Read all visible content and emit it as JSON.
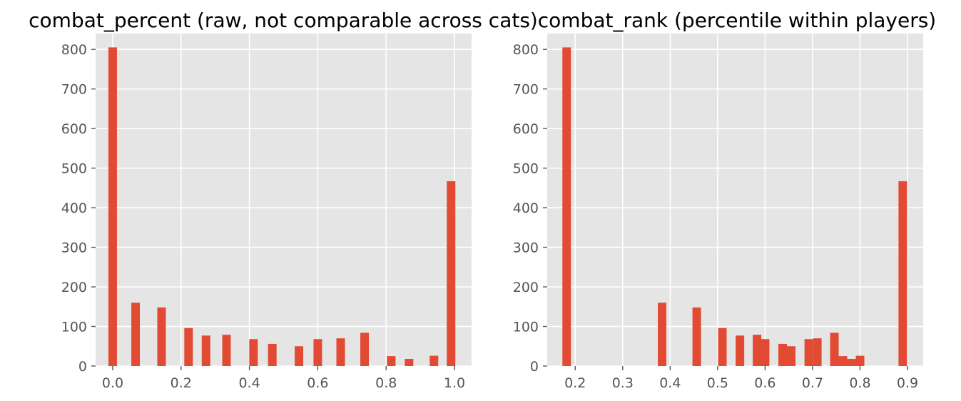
{
  "chart_data": [
    {
      "type": "bar",
      "title": "combat_percent (raw, not comparable across cats)",
      "xlabel": "",
      "ylabel": "",
      "xlim": [
        -0.05,
        1.05
      ],
      "ylim": [
        0,
        840
      ],
      "xticks": [
        0.0,
        0.2,
        0.4,
        0.6,
        0.8,
        1.0
      ],
      "xtick_labels": [
        "0.0",
        "0.2",
        "0.4",
        "0.6",
        "0.8",
        "1.0"
      ],
      "yticks": [
        0,
        100,
        200,
        300,
        400,
        500,
        600,
        700,
        800
      ],
      "ytick_labels": [
        "0",
        "100",
        "200",
        "300",
        "400",
        "500",
        "600",
        "700",
        "800"
      ],
      "grid": true,
      "bar_color": "#E24A33",
      "background_color": "#E5E5E5",
      "bin_width": 0.025,
      "bars": [
        {
          "x": 0.0,
          "value": 805
        },
        {
          "x": 0.067,
          "value": 160
        },
        {
          "x": 0.143,
          "value": 148
        },
        {
          "x": 0.222,
          "value": 96
        },
        {
          "x": 0.273,
          "value": 77
        },
        {
          "x": 0.333,
          "value": 79
        },
        {
          "x": 0.412,
          "value": 68
        },
        {
          "x": 0.467,
          "value": 56
        },
        {
          "x": 0.545,
          "value": 50
        },
        {
          "x": 0.6,
          "value": 68
        },
        {
          "x": 0.667,
          "value": 70
        },
        {
          "x": 0.737,
          "value": 84
        },
        {
          "x": 0.815,
          "value": 25
        },
        {
          "x": 0.867,
          "value": 18
        },
        {
          "x": 0.94,
          "value": 26
        },
        {
          "x": 0.99,
          "value": 467
        }
      ]
    },
    {
      "type": "bar",
      "title": "combat_rank (percentile within players)",
      "xlabel": "",
      "ylabel": "",
      "xlim": [
        0.141,
        0.933
      ],
      "ylim": [
        0,
        840
      ],
      "xticks": [
        0.2,
        0.3,
        0.4,
        0.5,
        0.6,
        0.7,
        0.8,
        0.9
      ],
      "xtick_labels": [
        "0.2",
        "0.3",
        "0.4",
        "0.5",
        "0.6",
        "0.7",
        "0.8",
        "0.9"
      ],
      "yticks": [
        0,
        100,
        200,
        300,
        400,
        500,
        600,
        700,
        800
      ],
      "ytick_labels": [
        "0",
        "100",
        "200",
        "300",
        "400",
        "500",
        "600",
        "700",
        "800"
      ],
      "grid": true,
      "bar_color": "#E24A33",
      "background_color": "#E5E5E5",
      "bin_width": 0.018,
      "bars": [
        {
          "x": 0.182,
          "value": 805
        },
        {
          "x": 0.383,
          "value": 160
        },
        {
          "x": 0.456,
          "value": 148
        },
        {
          "x": 0.51,
          "value": 96
        },
        {
          "x": 0.547,
          "value": 77
        },
        {
          "x": 0.583,
          "value": 79
        },
        {
          "x": 0.6,
          "value": 68
        },
        {
          "x": 0.637,
          "value": 56
        },
        {
          "x": 0.655,
          "value": 50
        },
        {
          "x": 0.692,
          "value": 68
        },
        {
          "x": 0.71,
          "value": 70
        },
        {
          "x": 0.746,
          "value": 84
        },
        {
          "x": 0.764,
          "value": 25
        },
        {
          "x": 0.782,
          "value": 18
        },
        {
          "x": 0.8,
          "value": 26
        },
        {
          "x": 0.89,
          "value": 467
        }
      ]
    }
  ]
}
